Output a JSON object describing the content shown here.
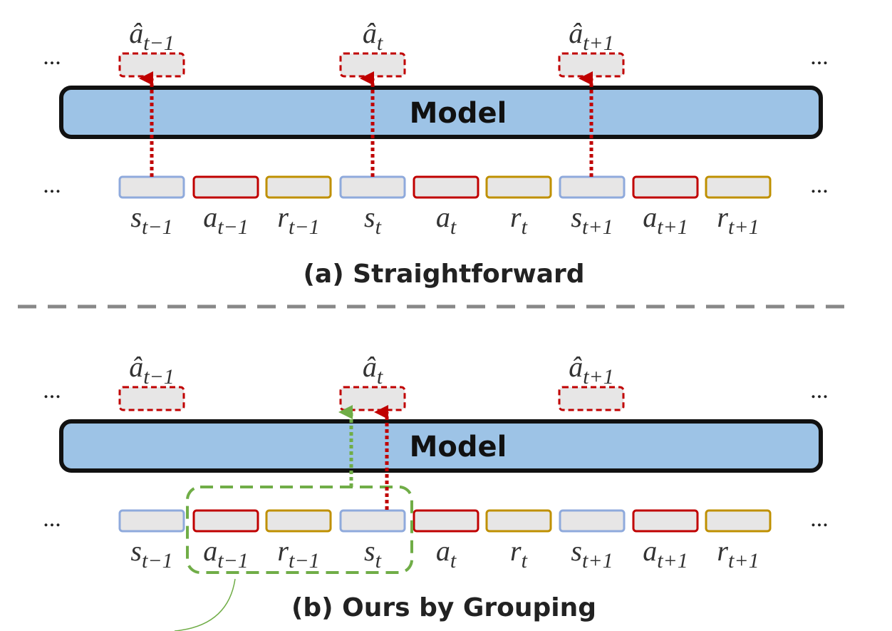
{
  "panels": [
    {
      "predictions": [
        {
          "base": "â",
          "sub": "t−1"
        },
        {
          "base": "â",
          "sub": "t"
        },
        {
          "base": "â",
          "sub": "t+1"
        }
      ],
      "model": "Model",
      "tokens": [
        {
          "base": "s",
          "sub": "t−1"
        },
        {
          "base": "a",
          "sub": "t−1"
        },
        {
          "base": "r",
          "sub": "t−1"
        },
        {
          "base": "s",
          "sub": "t"
        },
        {
          "base": "a",
          "sub": "t"
        },
        {
          "base": "r",
          "sub": "t"
        },
        {
          "base": "s",
          "sub": "t+1"
        },
        {
          "base": "a",
          "sub": "t+1"
        },
        {
          "base": "r",
          "sub": "t+1"
        }
      ],
      "ellipses": [
        "...",
        "...",
        "...",
        "..."
      ],
      "caption": "(a) Straightforward"
    },
    {
      "predictions": [
        {
          "base": "â",
          "sub": "t−1"
        },
        {
          "base": "â",
          "sub": "t"
        },
        {
          "base": "â",
          "sub": "t+1"
        }
      ],
      "model": "Model",
      "tokens": [
        {
          "base": "s",
          "sub": "t−1"
        },
        {
          "base": "a",
          "sub": "t−1"
        },
        {
          "base": "r",
          "sub": "t−1"
        },
        {
          "base": "s",
          "sub": "t"
        },
        {
          "base": "a",
          "sub": "t"
        },
        {
          "base": "r",
          "sub": "t"
        },
        {
          "base": "s",
          "sub": "t+1"
        },
        {
          "base": "a",
          "sub": "t+1"
        },
        {
          "base": "r",
          "sub": "t+1"
        }
      ],
      "ellipses": [
        "...",
        "...",
        "...",
        "..."
      ],
      "caption": "(b) Ours by Grouping"
    }
  ]
}
